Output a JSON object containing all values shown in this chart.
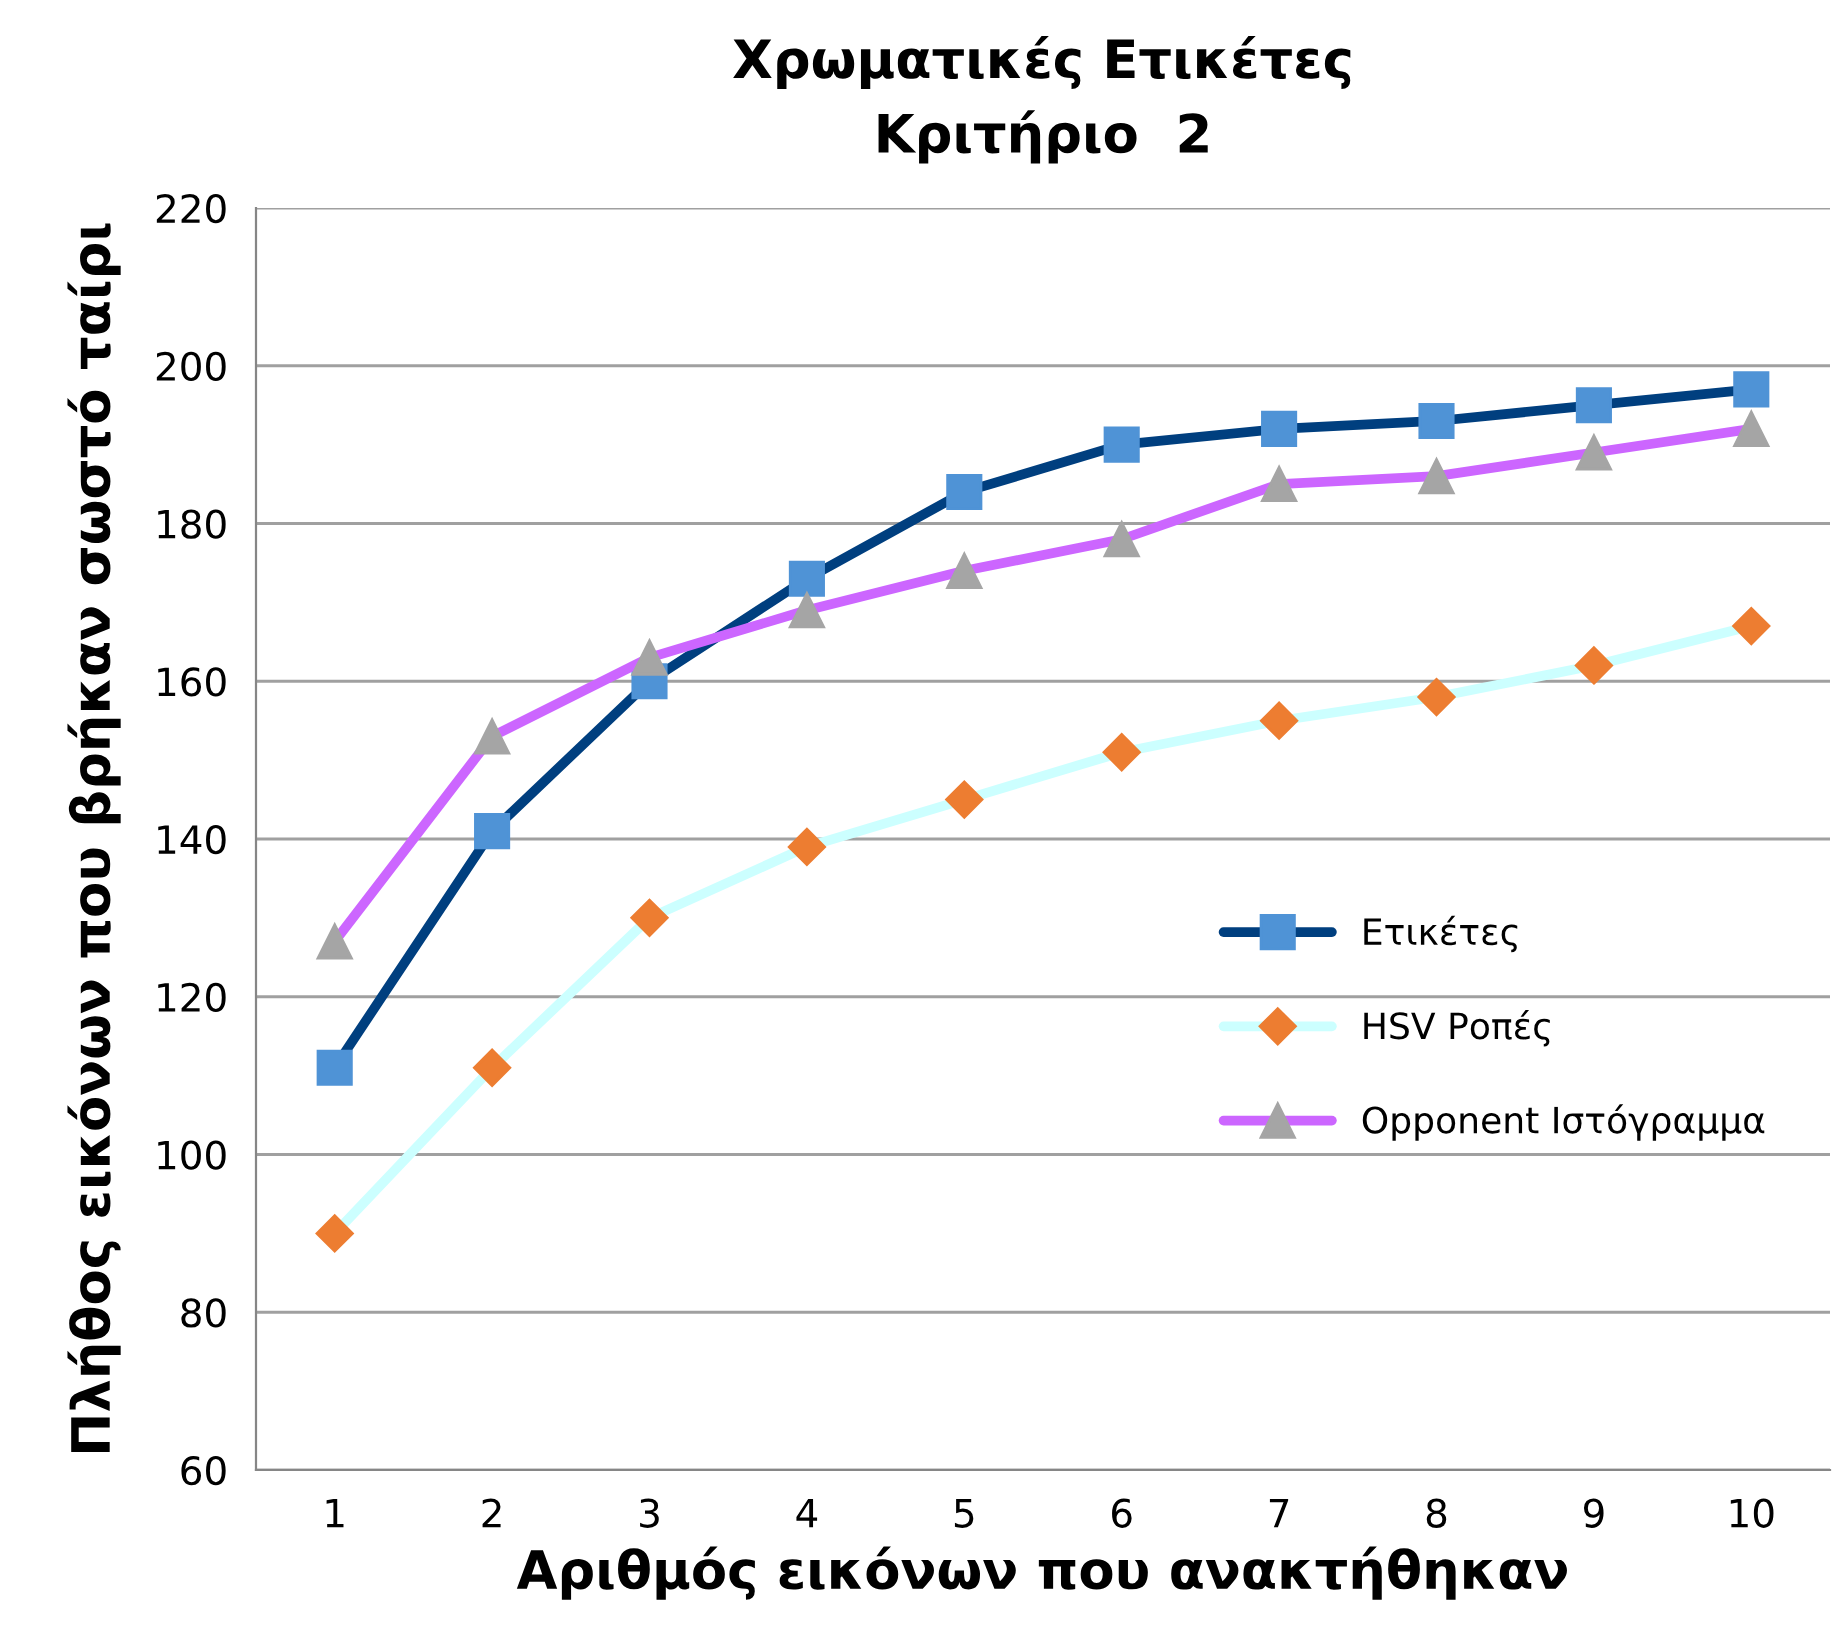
{
  "chart_data": {
    "type": "line",
    "title": "Χρωματικές Ετικέτες\nΚριτήριο  2",
    "xlabel": "Αριθμός εικόνων που ανακτήθηκαν",
    "ylabel": "Πλήθος εικόνων που βρήκαν σωστό ταίρι",
    "categories": [
      "1",
      "2",
      "3",
      "4",
      "5",
      "6",
      "7",
      "8",
      "9",
      "10"
    ],
    "series": [
      {
        "name": "Ετικέτες",
        "color": "#003f7f",
        "marker": "square",
        "values": [
          111,
          141,
          160,
          173,
          184,
          190,
          192,
          193,
          195,
          197
        ]
      },
      {
        "name": "HSV Ροπές",
        "color": "#ccffff",
        "marker": "diamond",
        "values": [
          90,
          111,
          130,
          139,
          145,
          151,
          155,
          158,
          162,
          167
        ]
      },
      {
        "name": "Opponent Ιστόγραμμα",
        "color": "#cc66ff",
        "marker": "triangle",
        "values": [
          127,
          153,
          163,
          169,
          174,
          178,
          185,
          186,
          189,
          192
        ]
      }
    ],
    "ylim": [
      60,
      220
    ],
    "yticks": [
      60,
      80,
      100,
      120,
      140,
      160,
      180,
      200,
      220
    ],
    "grid": "y",
    "legend": "right",
    "line_style": "solid"
  }
}
